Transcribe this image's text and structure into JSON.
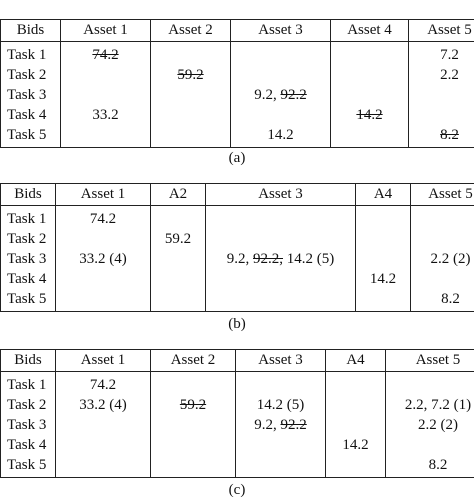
{
  "tables": [
    {
      "header": [
        "Bids",
        "Asset 1",
        "Asset 2",
        "Asset 3",
        "Asset 4",
        "Asset 5"
      ],
      "rows": [
        {
          "label": "Task 1",
          "cells": [
            [
              {
                "text": "74.2",
                "strike": true
              }
            ],
            [],
            [],
            [],
            [
              "7.2"
            ]
          ]
        },
        {
          "label": "Task 2",
          "cells": [
            [],
            [
              {
                "text": "59.2",
                "strike": true
              }
            ],
            [],
            [],
            [
              "2.2"
            ]
          ]
        },
        {
          "label": "Task 3",
          "cells": [
            [],
            [],
            [
              "9.2, ",
              {
                "text": "92.2",
                "strike": true
              }
            ],
            [],
            []
          ]
        },
        {
          "label": "Task 4",
          "cells": [
            [
              "33.2"
            ],
            [],
            [],
            [
              {
                "text": "14.2",
                "strike": true
              }
            ],
            []
          ]
        },
        {
          "label": "Task 5",
          "cells": [
            [],
            [],
            [
              "14.2"
            ],
            [],
            [
              {
                "text": "8.2",
                "strike": true
              }
            ]
          ]
        }
      ],
      "caption": "(a)"
    },
    {
      "header": [
        "Bids",
        "Asset 1",
        "A2",
        "Asset 3",
        "A4",
        "Asset 5"
      ],
      "rows": [
        {
          "label": "Task 1",
          "cells": [
            [
              "74.2"
            ],
            [],
            [],
            [],
            []
          ]
        },
        {
          "label": "Task 2",
          "cells": [
            [],
            [
              "59.2"
            ],
            [],
            [],
            []
          ]
        },
        {
          "label": "Task 3",
          "cells": [
            [
              "33.2 (4)"
            ],
            [],
            [
              "9.2, ",
              {
                "text": "92.2,",
                "strike": true
              },
              " 14.2 (5)"
            ],
            [],
            [
              "2.2 (2)"
            ]
          ]
        },
        {
          "label": "Task 4",
          "cells": [
            [],
            [],
            [],
            [
              "14.2"
            ],
            []
          ]
        },
        {
          "label": "Task 5",
          "cells": [
            [],
            [],
            [],
            [],
            [
              "8.2"
            ]
          ]
        }
      ],
      "caption": "(b)"
    },
    {
      "header": [
        "Bids",
        "Asset 1",
        "Asset 2",
        "Asset 3",
        "A4",
        "Asset 5"
      ],
      "rows": [
        {
          "label": "Task 1",
          "cells": [
            [
              "74.2"
            ],
            [],
            [],
            [],
            []
          ]
        },
        {
          "label": "Task 2",
          "cells": [
            [
              "33.2 (4)"
            ],
            [
              {
                "text": "59.2",
                "strike": true
              }
            ],
            [
              "14.2 (5)"
            ],
            [],
            [
              "2.2, 7.2 (1)"
            ]
          ]
        },
        {
          "label": "Task 3",
          "cells": [
            [],
            [],
            [
              "9.2, ",
              {
                "text": "92.2",
                "strike": true
              }
            ],
            [],
            [
              "2.2 (2)"
            ]
          ]
        },
        {
          "label": "Task 4",
          "cells": [
            [],
            [],
            [],
            [
              "14.2"
            ],
            []
          ]
        },
        {
          "label": "Task 5",
          "cells": [
            [],
            [],
            [],
            [],
            [
              "8.2"
            ]
          ]
        }
      ],
      "caption": "(c)"
    }
  ]
}
